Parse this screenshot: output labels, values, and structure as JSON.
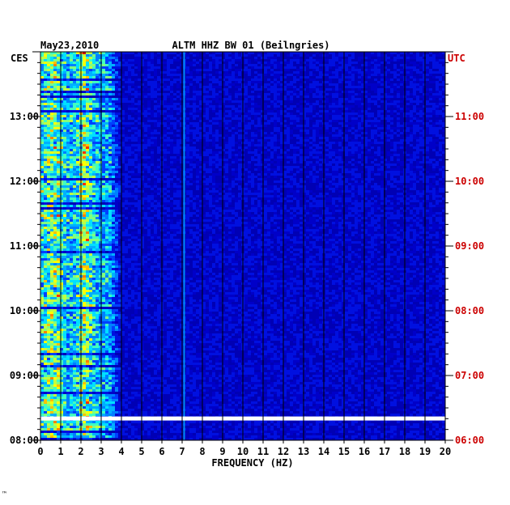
{
  "chart_data": {
    "type": "heatmap",
    "title": "ALTM HHZ BW 01 (Beilngries)",
    "date": "May23,2010",
    "left_timezone": "CES",
    "right_timezone": "UTC",
    "xlabel": "FREQUENCY (HZ)",
    "xlim": [
      0,
      20
    ],
    "x_ticks": [
      "0",
      "1",
      "2",
      "3",
      "4",
      "5",
      "6",
      "7",
      "8",
      "9",
      "10",
      "11",
      "12",
      "13",
      "14",
      "15",
      "16",
      "17",
      "18",
      "19",
      "20"
    ],
    "left_time_ticks": [
      "13:00",
      "12:00",
      "11:00",
      "10:00",
      "09:00",
      "08:00"
    ],
    "right_time_ticks": [
      "11:00",
      "10:00",
      "09:00",
      "08:00",
      "07:00",
      "06:00"
    ],
    "time_ticks_hours_ces": [
      13,
      12,
      11,
      10,
      9,
      8
    ],
    "time_range_ces_hours": [
      8.0,
      14.0
    ],
    "data_gap_ces_hour": 8.33,
    "energy_band_hz": [
      0,
      4
    ],
    "persistent_line_hz": 7.1,
    "colors": {
      "background": "#0000b4",
      "gridline": "#000000",
      "left_axis_text": "#000000",
      "right_axis_text": "#cc0000"
    }
  },
  "footer": {
    "mark": "™"
  }
}
